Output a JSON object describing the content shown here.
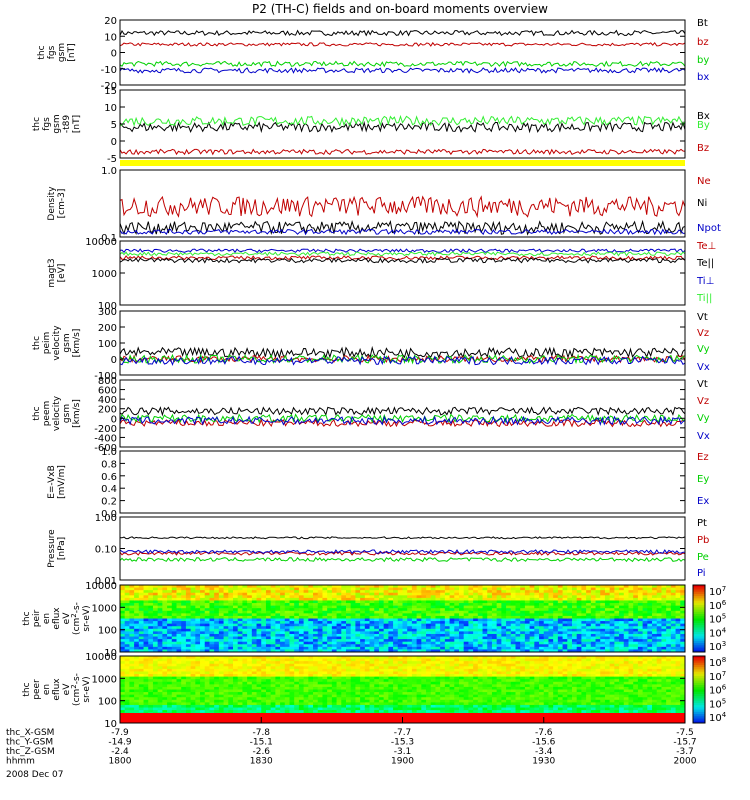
{
  "title": "P2 (TH-C) fields and on-board moments overview",
  "colors": {
    "black": "#000000",
    "red": "#c00000",
    "green": "#00d000",
    "blue": "#0000c8",
    "brightgreen": "#33ee33",
    "yellow": "#ffff00"
  },
  "chart_data": [
    {
      "id": "p1",
      "type": "line",
      "ylabel": [
        "thc",
        "fgs",
        "gsm",
        "[nT]"
      ],
      "ylim": [
        -20,
        20
      ],
      "yticks": [
        "20",
        "10",
        "0",
        "-10",
        "-20"
      ],
      "legend": [
        "Bt",
        "bz",
        "by",
        "bx"
      ],
      "series": [
        {
          "name": "Bt",
          "color": "#000000",
          "base": 12,
          "noise": 1.5
        },
        {
          "name": "bz",
          "color": "#c00000",
          "base": 5,
          "noise": 1.0
        },
        {
          "name": "by",
          "color": "#00d000",
          "base": -7,
          "noise": 1.5
        },
        {
          "name": "bx",
          "color": "#0000c8",
          "base": -11,
          "noise": 1.5
        }
      ]
    },
    {
      "id": "p2",
      "type": "line",
      "ylabel": [
        "thc",
        "fgs",
        "gsm",
        "-t89",
        "[nT]"
      ],
      "ylim": [
        -7,
        15
      ],
      "yticks": [
        "15",
        "10",
        "5",
        "0",
        "-5"
      ],
      "legend": [
        "Bx",
        "By",
        "Bz"
      ],
      "series": [
        {
          "name": "Bx",
          "color": "#000000",
          "base": 3,
          "noise": 1.5
        },
        {
          "name": "By",
          "color": "#33ee33",
          "base": 5,
          "noise": 1.5
        },
        {
          "name": "Bz",
          "color": "#c00000",
          "base": -5,
          "noise": 0.8
        }
      ]
    },
    {
      "id": "p3",
      "type": "line",
      "ylabel": [
        "Density",
        "[cm-3]"
      ],
      "yscale": "log",
      "ylim": [
        0.1,
        1.0
      ],
      "yticks": [
        "1.0",
        "0.1"
      ],
      "legend": [
        "Ne",
        "Ni",
        "Npot"
      ],
      "series": [
        {
          "name": "Ne",
          "color": "#c00000",
          "base": 0.3,
          "noise": 0.1
        },
        {
          "name": "Ni",
          "color": "#000000",
          "base": 0.14,
          "noise": 0.03
        },
        {
          "name": "Npot",
          "color": "#0000c8",
          "base": 0.12,
          "noise": 0.01
        }
      ]
    },
    {
      "id": "p4",
      "type": "line",
      "ylabel": [
        "magt3",
        "[eV]"
      ],
      "yscale": "log",
      "ylim": [
        100,
        10000
      ],
      "yticks": [
        "10000",
        "1000",
        "100"
      ],
      "legend": [
        "Te⊥",
        "Te||",
        "Ti⊥",
        "Ti||"
      ],
      "series": [
        {
          "name": "Te⊥",
          "color": "#c00000",
          "base": 3000,
          "noise": 400
        },
        {
          "name": "Te||",
          "color": "#000000",
          "base": 2500,
          "noise": 400
        },
        {
          "name": "Ti⊥",
          "color": "#0000c8",
          "base": 5000,
          "noise": 600
        },
        {
          "name": "Ti||",
          "color": "#33ee33",
          "base": 4000,
          "noise": 500
        }
      ]
    },
    {
      "id": "p5",
      "type": "line",
      "ylabel": [
        "thc",
        "peim",
        "velocity",
        "gsm",
        "[km/s]"
      ],
      "ylim": [
        -100,
        300
      ],
      "yticks": [
        "300",
        "200",
        "100",
        "0",
        "-100"
      ],
      "legend": [
        "Vt",
        "Vz",
        "Vy",
        "Vx"
      ],
      "series": [
        {
          "name": "Vt",
          "color": "#000000",
          "base": 40,
          "noise": 30
        },
        {
          "name": "Vz",
          "color": "#c00000",
          "base": 0,
          "noise": 20
        },
        {
          "name": "Vy",
          "color": "#00d000",
          "base": 0,
          "noise": 25
        },
        {
          "name": "Vx",
          "color": "#0000c8",
          "base": -10,
          "noise": 25
        }
      ]
    },
    {
      "id": "p6",
      "type": "line",
      "ylabel": [
        "thc",
        "peem",
        "velocity",
        "gsm",
        "[km/s]"
      ],
      "ylim": [
        -600,
        800
      ],
      "yticks": [
        "800",
        "600",
        "400",
        "200",
        "0",
        "-200",
        "-400",
        "-600"
      ],
      "legend": [
        "Vt",
        "Vz",
        "Vy",
        "Vx"
      ],
      "series": [
        {
          "name": "Vt",
          "color": "#000000",
          "base": 150,
          "noise": 80
        },
        {
          "name": "Vz",
          "color": "#c00000",
          "base": -100,
          "noise": 70
        },
        {
          "name": "Vy",
          "color": "#00d000",
          "base": 0,
          "noise": 80
        },
        {
          "name": "Vx",
          "color": "#0000c8",
          "base": -50,
          "noise": 80
        }
      ]
    },
    {
      "id": "p7",
      "type": "line",
      "ylabel": [
        "E=-VxB",
        "[mV/m]"
      ],
      "ylim": [
        0,
        1.0
      ],
      "yticks": [
        "1.0",
        "0.8",
        "0.6",
        "0.4",
        "0.2",
        "0.0"
      ],
      "legend": [
        "Ez",
        "Ey",
        "Ex"
      ],
      "series": []
    },
    {
      "id": "p8",
      "type": "line",
      "ylabel": [
        "Pressure",
        "[nPa]"
      ],
      "yscale": "log",
      "ylim": [
        0.01,
        1.0
      ],
      "yticks": [
        "1.00",
        "0.10",
        "0.01"
      ],
      "legend": [
        "Pt",
        "Pb",
        "Pe",
        "Pi"
      ],
      "series": [
        {
          "name": "Pt",
          "color": "#000000",
          "base": 0.22,
          "noise": 0.015
        },
        {
          "name": "Pb",
          "color": "#c00000",
          "base": 0.07,
          "noise": 0.008
        },
        {
          "name": "Pe",
          "color": "#00d000",
          "base": 0.045,
          "noise": 0.006
        },
        {
          "name": "Pi",
          "color": "#0000c8",
          "base": 0.08,
          "noise": 0.01
        }
      ]
    },
    {
      "id": "p9",
      "type": "heatmap",
      "ylabel": [
        "thc",
        "peir",
        "en",
        "eflux",
        "eV",
        "(cm^2-s-",
        "sr-eV)"
      ],
      "yscale": "log",
      "ylim": [
        10,
        20000
      ],
      "yticks": [
        "10000",
        "1000",
        "100",
        "10"
      ],
      "colorbar": [
        "10^7",
        "10^6",
        "10^5",
        "10^4",
        "10^3"
      ]
    },
    {
      "id": "p10",
      "type": "heatmap",
      "ylabel": [
        "thc",
        "peer",
        "en",
        "eflux",
        "eV",
        "(cm^2-s-",
        "sr-eV)"
      ],
      "yscale": "log",
      "ylim": [
        10,
        20000
      ],
      "yticks": [
        "10000",
        "1000",
        "100",
        "10"
      ],
      "colorbar": [
        "10^8",
        "10^7",
        "10^6",
        "10^5",
        "10^4"
      ]
    }
  ],
  "xaxis": {
    "rows": [
      {
        "label": "thc_X-GSM",
        "values": [
          "-7.9",
          "-7.8",
          "-7.7",
          "-7.6",
          "-7.5"
        ]
      },
      {
        "label": "thc_Y-GSM",
        "values": [
          "-14.9",
          "-15.1",
          "-15.3",
          "-15.6",
          "-15.7"
        ]
      },
      {
        "label": "thc_Z-GSM",
        "values": [
          "-2.4",
          "-2.6",
          "-3.1",
          "-3.4",
          "-3.7"
        ]
      },
      {
        "label": "hhmm",
        "values": [
          "1800",
          "1830",
          "1900",
          "1930",
          "2000"
        ]
      }
    ],
    "date": "2008 Dec 07"
  }
}
